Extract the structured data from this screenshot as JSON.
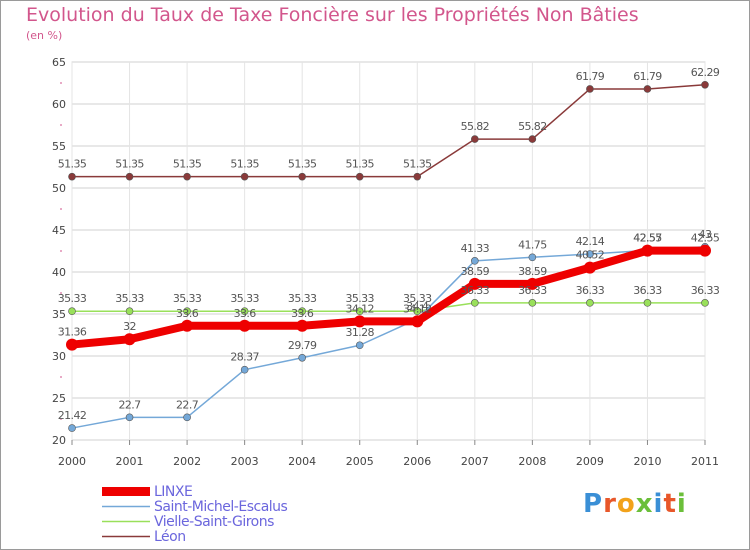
{
  "chart_data": {
    "type": "line",
    "title": "Evolution du Taux de Taxe Foncière sur les Propriétés Non Bâties",
    "ylabel": "(en %)",
    "xlabel": "",
    "x": [
      "2000",
      "2001",
      "2002",
      "2003",
      "2004",
      "2005",
      "2006",
      "2007",
      "2008",
      "2009",
      "2010",
      "2011"
    ],
    "ylim": [
      20,
      65
    ],
    "yticks": [
      20,
      25,
      30,
      35,
      40,
      45,
      50,
      55,
      60,
      65
    ],
    "grid": true,
    "series": [
      {
        "name": "LINXE",
        "color": "#ee0000",
        "values": [
          31.36,
          32,
          33.6,
          33.6,
          33.6,
          34.12,
          34.12,
          38.59,
          38.59,
          40.52,
          42.55,
          42.55
        ],
        "labels": [
          "31.36",
          "32",
          "33.6",
          "33.6",
          "33.6",
          "34.12",
          "34.12",
          "38.59",
          "38.59",
          "40.52",
          "42.55",
          "42.55"
        ]
      },
      {
        "name": "Saint-Michel-Escalus",
        "color": "#74a8d8",
        "values": [
          21.42,
          22.7,
          22.7,
          28.37,
          29.79,
          31.28,
          34.4,
          41.33,
          41.75,
          42.14,
          42.57,
          43
        ],
        "labels": [
          "21.42",
          "22.7",
          "22.7",
          "28.37",
          "29.79",
          "31.28",
          "34.4",
          "41.33",
          "41.75",
          "42.14",
          "42.57",
          "43"
        ]
      },
      {
        "name": "Vielle-Saint-Girons",
        "color": "#99e05a",
        "values": [
          35.33,
          35.33,
          35.33,
          35.33,
          35.33,
          35.33,
          35.33,
          36.33,
          36.33,
          36.33,
          36.33,
          36.33
        ],
        "labels": [
          "35.33",
          "35.33",
          "35.33",
          "35.33",
          "35.33",
          "35.33",
          "35.33",
          "36.33",
          "36.33",
          "36.33",
          "36.33",
          "36.33"
        ]
      },
      {
        "name": "Léon",
        "color": "#8a3a3a",
        "values": [
          51.35,
          51.35,
          51.35,
          51.35,
          51.35,
          51.35,
          51.35,
          55.82,
          55.82,
          61.79,
          61.79,
          62.29
        ],
        "labels": [
          "51.35",
          "51.35",
          "51.35",
          "51.35",
          "51.35",
          "51.35",
          "51.35",
          "55.82",
          "55.82",
          "61.79",
          "61.79",
          "62.29"
        ]
      }
    ],
    "legend_position": "bottom-left"
  },
  "branding": {
    "logo_text": "Proxiti"
  }
}
